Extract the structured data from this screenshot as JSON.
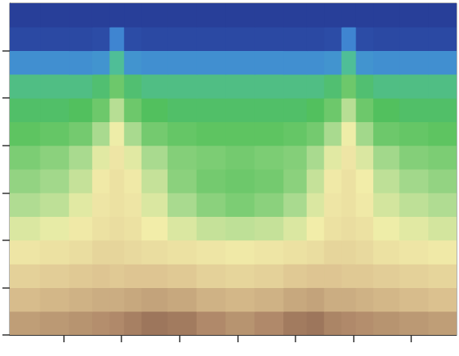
{
  "chart_data": {
    "type": "heatmap",
    "grid": false,
    "tick_labels": false,
    "xlim": [
      0.07,
      7.78
    ],
    "xticks": [
      1,
      2,
      3,
      4,
      5,
      6,
      7
    ],
    "ylim": [
      0,
      7
    ],
    "yticks": [
      0,
      1,
      2,
      3,
      4,
      5,
      6
    ],
    "zlim": [
      0,
      10
    ],
    "colors": [
      "#263a94",
      "#2f56b0",
      "#3f86d2",
      "#4cbcc4",
      "#52c05a",
      "#a6d98e",
      "#f3eeaa",
      "#dcc290",
      "#b08a6a",
      "#7e5444"
    ],
    "x_edges": [
      0.07,
      0.6,
      1.1,
      1.5,
      1.8,
      2.05,
      2.35,
      2.8,
      3.3,
      3.8,
      4.3,
      4.8,
      5.2,
      5.5,
      5.8,
      6.05,
      6.35,
      6.8,
      7.3,
      7.78
    ],
    "y_edges": [
      0,
      0.5,
      1,
      1.5,
      2,
      2.5,
      3,
      3.5,
      4,
      4.5,
      5,
      5.5,
      6,
      6.5,
      7
    ],
    "cells": [
      [
        8.5,
        8.6,
        8.7,
        8.8,
        8.9,
        9.1,
        9.3,
        9.2,
        8.9,
        8.7,
        8.9,
        9.2,
        9.3,
        9.0,
        8.9,
        8.8,
        8.7,
        8.6,
        8.5
      ],
      [
        7.9,
        8.0,
        8.1,
        8.2,
        8.2,
        8.3,
        8.4,
        8.3,
        8.1,
        8.0,
        8.1,
        8.3,
        8.4,
        8.2,
        8.2,
        8.1,
        8.0,
        7.9,
        7.8
      ],
      [
        7.4,
        7.5,
        7.6,
        7.7,
        7.6,
        7.7,
        7.7,
        7.6,
        7.4,
        7.3,
        7.4,
        7.6,
        7.7,
        7.7,
        7.6,
        7.6,
        7.5,
        7.4,
        7.3
      ],
      [
        6.9,
        7.0,
        7.1,
        7.3,
        7.3,
        7.2,
        7.1,
        7.0,
        6.9,
        6.8,
        6.9,
        7.0,
        7.1,
        7.3,
        7.3,
        7.2,
        7.0,
        6.9,
        6.8
      ],
      [
        6.3,
        6.5,
        6.8,
        7.0,
        7.1,
        7.0,
        6.7,
        6.3,
        6.0,
        5.9,
        6.0,
        6.3,
        6.7,
        7.0,
        7.1,
        7.0,
        6.6,
        6.4,
        6.2
      ],
      [
        5.7,
        5.9,
        6.4,
        6.9,
        7.0,
        6.9,
        6.3,
        5.6,
        5.2,
        5.0,
        5.2,
        5.6,
        6.3,
        6.9,
        7.0,
        6.8,
        6.2,
        5.9,
        5.7
      ],
      [
        5.3,
        5.5,
        6.0,
        6.8,
        7.0,
        6.8,
        6.0,
        5.2,
        4.9,
        4.8,
        4.9,
        5.2,
        6.0,
        6.8,
        7.0,
        6.7,
        5.9,
        5.5,
        5.3
      ],
      [
        5.0,
        5.2,
        5.6,
        6.4,
        6.9,
        6.4,
        5.6,
        5.1,
        5.0,
        4.9,
        5.0,
        5.1,
        5.6,
        6.4,
        6.9,
        6.3,
        5.5,
        5.1,
        5.0
      ],
      [
        4.6,
        4.7,
        4.9,
        5.6,
        6.6,
        5.6,
        4.9,
        4.7,
        4.6,
        4.6,
        4.6,
        4.7,
        4.9,
        5.6,
        6.6,
        5.5,
        4.8,
        4.7,
        4.6
      ],
      [
        4.3,
        4.3,
        4.4,
        4.8,
        5.8,
        4.8,
        4.4,
        4.3,
        4.3,
        4.3,
        4.3,
        4.3,
        4.4,
        4.8,
        5.8,
        4.8,
        4.4,
        4.3,
        4.3
      ],
      [
        4.0,
        4.0,
        4.0,
        4.2,
        4.8,
        4.2,
        4.0,
        4.0,
        4.0,
        4.0,
        4.0,
        4.0,
        4.0,
        4.2,
        4.8,
        4.2,
        4.0,
        4.0,
        4.0
      ],
      [
        2.4,
        2.4,
        2.4,
        2.5,
        3.8,
        2.5,
        2.4,
        2.4,
        2.4,
        2.4,
        2.4,
        2.4,
        2.4,
        2.5,
        3.8,
        2.5,
        2.4,
        2.4,
        2.4
      ],
      [
        0.6,
        0.6,
        0.6,
        0.7,
        2.2,
        0.7,
        0.6,
        0.6,
        0.6,
        0.6,
        0.6,
        0.6,
        0.6,
        0.7,
        2.2,
        0.7,
        0.6,
        0.6,
        0.6
      ],
      [
        0.2,
        0.2,
        0.2,
        0.2,
        0.2,
        0.2,
        0.2,
        0.2,
        0.2,
        0.2,
        0.2,
        0.2,
        0.2,
        0.2,
        0.2,
        0.2,
        0.2,
        0.2,
        0.2
      ]
    ]
  }
}
